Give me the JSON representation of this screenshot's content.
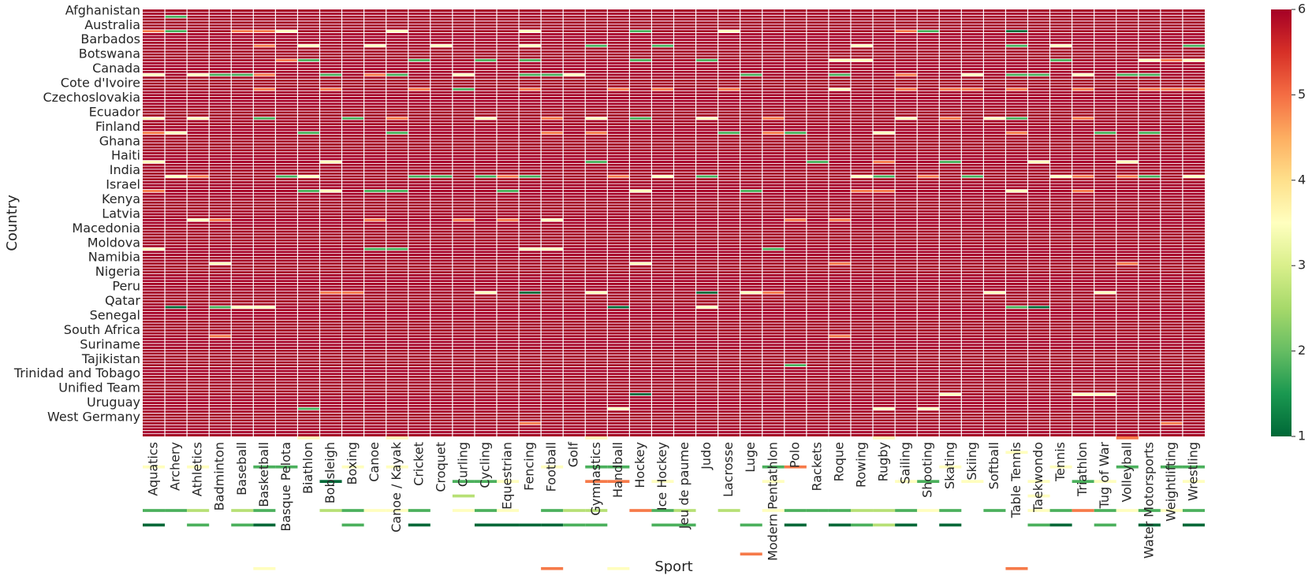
{
  "chart_data": {
    "type": "heatmap",
    "xlabel": "Sport",
    "ylabel": "Country",
    "x_labels": [
      "Aquatics",
      "Archery",
      "Athletics",
      "Badminton",
      "Baseball",
      "Basketball",
      "Basque Pelota",
      "Biathlon",
      "Bobsleigh",
      "Boxing",
      "Canoe",
      "Canoe / Kayak",
      "Cricket",
      "Croquet",
      "Curling",
      "Cycling",
      "Equestrian",
      "Fencing",
      "Football",
      "Golf",
      "Gymnastics",
      "Handball",
      "Hockey",
      "Ice Hockey",
      "Jeu de paume",
      "Judo",
      "Lacrosse",
      "Luge",
      "Modern Pentathlon",
      "Polo",
      "Rackets",
      "Roque",
      "Rowing",
      "Rugby",
      "Sailing",
      "Shooting",
      "Skating",
      "Skiing",
      "Softball",
      "Table Tennis",
      "Taekwondo",
      "Tennis",
      "Triathlon",
      "Tug of War",
      "Volleyball",
      "Water Motorsports",
      "Weightlifting",
      "Wrestling"
    ],
    "y_tick_labels": [
      "Afghanistan",
      "Australia",
      "Barbados",
      "Botswana",
      "Canada",
      "Cote d'Ivoire",
      "Czechoslovakia",
      "Ecuador",
      "Finland",
      "Ghana",
      "Haiti",
      "India",
      "Israel",
      "Kenya",
      "Latvia",
      "Macedonia",
      "Moldova",
      "Namibia",
      "Nigeria",
      "Peru",
      "Qatar",
      "Senegal",
      "South Africa",
      "Suriname",
      "Tajikistan",
      "Trinidad and Tobago",
      "Unified Team",
      "Uruguay",
      "West Germany"
    ],
    "rows_per_tick": 5,
    "row_count": 147,
    "default_value": 6,
    "cells": [
      [
        1,
        0,
        2
      ],
      [
        0,
        1,
        5
      ],
      [
        1,
        1,
        2
      ],
      [
        6,
        1,
        4
      ],
      [
        5,
        1,
        5
      ],
      [
        4,
        1,
        5
      ],
      [
        11,
        1,
        4
      ],
      [
        17,
        1,
        4
      ],
      [
        22,
        1,
        2
      ],
      [
        26,
        1,
        4
      ],
      [
        34,
        1,
        5
      ],
      [
        35,
        1,
        2
      ],
      [
        39,
        1,
        1
      ],
      [
        5,
        2,
        5
      ],
      [
        7,
        2,
        4
      ],
      [
        10,
        2,
        4
      ],
      [
        13,
        2,
        4
      ],
      [
        17,
        2,
        4
      ],
      [
        20,
        2,
        2
      ],
      [
        23,
        2,
        2
      ],
      [
        32,
        2,
        4
      ],
      [
        39,
        2,
        2
      ],
      [
        41,
        2,
        4
      ],
      [
        47,
        2,
        2
      ],
      [
        6,
        3,
        5
      ],
      [
        7,
        3,
        2
      ],
      [
        12,
        3,
        2
      ],
      [
        15,
        3,
        2
      ],
      [
        17,
        3,
        2
      ],
      [
        22,
        3,
        2
      ],
      [
        25,
        3,
        2
      ],
      [
        31,
        3,
        4
      ],
      [
        32,
        3,
        4
      ],
      [
        41,
        3,
        2
      ],
      [
        45,
        3,
        4
      ],
      [
        46,
        3,
        5
      ],
      [
        47,
        3,
        4
      ],
      [
        0,
        4,
        4
      ],
      [
        2,
        4,
        4
      ],
      [
        3,
        4,
        2
      ],
      [
        4,
        4,
        2
      ],
      [
        5,
        4,
        5
      ],
      [
        8,
        4,
        2
      ],
      [
        10,
        4,
        5
      ],
      [
        11,
        4,
        2
      ],
      [
        14,
        4,
        4
      ],
      [
        17,
        4,
        2
      ],
      [
        18,
        4,
        2
      ],
      [
        19,
        4,
        4
      ],
      [
        27,
        4,
        2
      ],
      [
        31,
        4,
        2
      ],
      [
        34,
        4,
        5
      ],
      [
        37,
        4,
        4
      ],
      [
        39,
        4,
        2
      ],
      [
        40,
        4,
        2
      ],
      [
        42,
        4,
        4
      ],
      [
        44,
        4,
        2
      ],
      [
        45,
        4,
        2
      ],
      [
        5,
        5,
        5
      ],
      [
        8,
        5,
        5
      ],
      [
        12,
        5,
        5
      ],
      [
        14,
        5,
        2
      ],
      [
        17,
        5,
        5
      ],
      [
        21,
        5,
        5
      ],
      [
        23,
        5,
        5
      ],
      [
        26,
        5,
        5
      ],
      [
        31,
        5,
        4
      ],
      [
        34,
        5,
        5
      ],
      [
        36,
        5,
        5
      ],
      [
        37,
        5,
        5
      ],
      [
        39,
        5,
        5
      ],
      [
        42,
        5,
        5
      ],
      [
        45,
        5,
        5
      ],
      [
        46,
        5,
        5
      ],
      [
        47,
        5,
        5
      ],
      [
        0,
        7,
        4
      ],
      [
        2,
        7,
        4
      ],
      [
        5,
        7,
        2
      ],
      [
        9,
        7,
        2
      ],
      [
        11,
        7,
        5
      ],
      [
        15,
        7,
        4
      ],
      [
        18,
        7,
        5
      ],
      [
        20,
        7,
        4
      ],
      [
        22,
        7,
        2
      ],
      [
        25,
        7,
        4
      ],
      [
        28,
        7,
        5
      ],
      [
        34,
        7,
        4
      ],
      [
        36,
        7,
        5
      ],
      [
        38,
        7,
        4
      ],
      [
        39,
        7,
        2
      ],
      [
        42,
        7,
        5
      ],
      [
        0,
        8,
        5
      ],
      [
        1,
        8,
        4
      ],
      [
        7,
        8,
        2
      ],
      [
        11,
        8,
        2
      ],
      [
        18,
        8,
        5
      ],
      [
        20,
        8,
        5
      ],
      [
        26,
        8,
        2
      ],
      [
        28,
        8,
        5
      ],
      [
        29,
        8,
        2
      ],
      [
        33,
        8,
        4
      ],
      [
        39,
        8,
        5
      ],
      [
        43,
        8,
        2
      ],
      [
        45,
        8,
        2
      ],
      [
        0,
        10,
        4
      ],
      [
        8,
        10,
        4
      ],
      [
        20,
        10,
        2
      ],
      [
        30,
        10,
        2
      ],
      [
        33,
        10,
        5
      ],
      [
        36,
        10,
        2
      ],
      [
        40,
        10,
        4
      ],
      [
        44,
        10,
        4
      ],
      [
        1,
        11,
        4
      ],
      [
        2,
        11,
        5
      ],
      [
        6,
        11,
        2
      ],
      [
        7,
        11,
        4
      ],
      [
        12,
        11,
        2
      ],
      [
        13,
        11,
        2
      ],
      [
        15,
        11,
        2
      ],
      [
        16,
        11,
        5
      ],
      [
        17,
        11,
        2
      ],
      [
        21,
        11,
        5
      ],
      [
        23,
        11,
        4
      ],
      [
        25,
        11,
        2
      ],
      [
        32,
        11,
        4
      ],
      [
        33,
        11,
        2
      ],
      [
        35,
        11,
        5
      ],
      [
        37,
        11,
        2
      ],
      [
        41,
        11,
        4
      ],
      [
        42,
        11,
        5
      ],
      [
        44,
        11,
        5
      ],
      [
        45,
        11,
        2
      ],
      [
        47,
        11,
        4
      ],
      [
        0,
        12,
        5
      ],
      [
        7,
        12,
        2
      ],
      [
        8,
        12,
        4
      ],
      [
        10,
        12,
        2
      ],
      [
        11,
        12,
        2
      ],
      [
        16,
        12,
        2
      ],
      [
        22,
        12,
        4
      ],
      [
        27,
        12,
        2
      ],
      [
        32,
        12,
        5
      ],
      [
        33,
        12,
        5
      ],
      [
        39,
        12,
        4
      ],
      [
        42,
        12,
        5
      ],
      [
        2,
        14,
        4
      ],
      [
        3,
        14,
        5
      ],
      [
        10,
        14,
        5
      ],
      [
        14,
        14,
        5
      ],
      [
        16,
        14,
        5
      ],
      [
        18,
        14,
        4
      ],
      [
        29,
        14,
        5
      ],
      [
        31,
        14,
        5
      ],
      [
        0,
        16,
        4
      ],
      [
        10,
        16,
        2
      ],
      [
        11,
        16,
        2
      ],
      [
        17,
        16,
        4
      ],
      [
        18,
        16,
        4
      ],
      [
        28,
        16,
        2
      ],
      [
        3,
        17,
        4
      ],
      [
        22,
        17,
        4
      ],
      [
        31,
        17,
        5
      ],
      [
        44,
        17,
        5
      ],
      [
        8,
        19,
        5
      ],
      [
        9,
        19,
        5
      ],
      [
        15,
        19,
        4
      ],
      [
        17,
        19,
        1
      ],
      [
        20,
        19,
        4
      ],
      [
        25,
        19,
        1
      ],
      [
        27,
        19,
        4
      ],
      [
        28,
        19,
        5
      ],
      [
        38,
        19,
        4
      ],
      [
        43,
        19,
        4
      ],
      [
        1,
        20,
        1
      ],
      [
        3,
        20,
        2
      ],
      [
        4,
        20,
        4
      ],
      [
        5,
        20,
        4
      ],
      [
        21,
        20,
        1
      ],
      [
        25,
        20,
        4
      ],
      [
        39,
        20,
        2
      ],
      [
        40,
        20,
        1
      ],
      [
        3,
        22,
        5
      ],
      [
        31,
        22,
        5
      ],
      [
        29,
        24,
        2
      ],
      [
        22,
        26,
        1
      ],
      [
        36,
        26,
        4
      ],
      [
        42,
        26,
        4
      ],
      [
        43,
        26,
        4
      ],
      [
        7,
        27,
        2
      ],
      [
        21,
        27,
        4
      ],
      [
        33,
        27,
        4
      ],
      [
        35,
        27,
        4
      ],
      [
        17,
        28,
        5
      ],
      [
        46,
        28,
        5
      ],
      [
        7,
        29,
        4
      ],
      [
        11,
        29,
        4
      ],
      [
        20,
        29,
        4
      ],
      [
        33,
        29,
        4
      ],
      [
        44,
        29,
        5
      ],
      [
        39,
        30,
        4
      ],
      [
        0,
        31,
        4
      ],
      [
        2,
        31,
        4
      ],
      [
        5,
        31,
        2
      ],
      [
        6,
        31,
        2
      ],
      [
        9,
        31,
        4
      ],
      [
        11,
        31,
        4
      ],
      [
        18,
        31,
        4
      ],
      [
        20,
        31,
        2
      ],
      [
        21,
        31,
        2
      ],
      [
        28,
        31,
        2
      ],
      [
        29,
        31,
        5
      ],
      [
        36,
        31,
        4
      ],
      [
        41,
        31,
        4
      ],
      [
        44,
        31,
        2
      ],
      [
        46,
        31,
        2
      ],
      [
        47,
        31,
        2
      ],
      [
        8,
        32,
        1
      ],
      [
        14,
        32,
        2
      ],
      [
        15,
        32,
        2
      ],
      [
        16,
        32,
        4
      ],
      [
        20,
        32,
        5
      ],
      [
        21,
        32,
        5
      ],
      [
        23,
        32,
        4
      ],
      [
        28,
        32,
        4
      ],
      [
        34,
        32,
        4
      ],
      [
        35,
        32,
        2
      ],
      [
        37,
        32,
        4
      ],
      [
        40,
        32,
        4
      ],
      [
        42,
        32,
        2
      ],
      [
        43,
        32,
        4
      ],
      [
        47,
        32,
        4
      ],
      [
        14,
        33,
        3
      ],
      [
        40,
        33,
        4
      ],
      [
        0,
        34,
        2
      ],
      [
        1,
        34,
        2
      ],
      [
        2,
        34,
        3
      ],
      [
        4,
        34,
        3
      ],
      [
        5,
        34,
        2
      ],
      [
        8,
        34,
        3
      ],
      [
        9,
        34,
        2
      ],
      [
        10,
        34,
        4
      ],
      [
        11,
        34,
        4
      ],
      [
        12,
        34,
        2
      ],
      [
        14,
        34,
        4
      ],
      [
        15,
        34,
        2
      ],
      [
        16,
        34,
        4
      ],
      [
        18,
        34,
        2
      ],
      [
        19,
        34,
        3
      ],
      [
        20,
        34,
        3
      ],
      [
        22,
        34,
        5
      ],
      [
        23,
        34,
        2
      ],
      [
        24,
        34,
        3
      ],
      [
        26,
        34,
        3
      ],
      [
        28,
        34,
        4
      ],
      [
        29,
        34,
        2
      ],
      [
        30,
        34,
        2
      ],
      [
        31,
        34,
        2
      ],
      [
        32,
        34,
        3
      ],
      [
        33,
        34,
        3
      ],
      [
        34,
        34,
        2
      ],
      [
        35,
        34,
        4
      ],
      [
        36,
        34,
        2
      ],
      [
        38,
        34,
        2
      ],
      [
        40,
        34,
        4
      ],
      [
        41,
        34,
        2
      ],
      [
        42,
        34,
        5
      ],
      [
        43,
        34,
        2
      ],
      [
        44,
        34,
        4
      ],
      [
        45,
        34,
        2
      ],
      [
        46,
        34,
        4
      ],
      [
        47,
        34,
        2
      ],
      [
        0,
        35,
        1
      ],
      [
        2,
        35,
        2
      ],
      [
        4,
        35,
        2
      ],
      [
        5,
        35,
        1
      ],
      [
        9,
        35,
        2
      ],
      [
        12,
        35,
        1
      ],
      [
        15,
        35,
        1
      ],
      [
        16,
        35,
        1
      ],
      [
        17,
        35,
        1
      ],
      [
        18,
        35,
        1
      ],
      [
        19,
        35,
        2
      ],
      [
        20,
        35,
        2
      ],
      [
        23,
        35,
        2
      ],
      [
        24,
        35,
        2
      ],
      [
        27,
        35,
        2
      ],
      [
        29,
        35,
        1
      ],
      [
        31,
        35,
        1
      ],
      [
        32,
        35,
        2
      ],
      [
        33,
        35,
        3
      ],
      [
        34,
        35,
        1
      ],
      [
        36,
        35,
        1
      ],
      [
        40,
        35,
        2
      ],
      [
        41,
        35,
        1
      ],
      [
        43,
        35,
        2
      ],
      [
        45,
        35,
        1
      ],
      [
        47,
        35,
        1
      ],
      [
        27,
        37,
        5
      ],
      [
        5,
        38,
        4
      ],
      [
        18,
        38,
        5
      ],
      [
        21,
        38,
        4
      ],
      [
        39,
        38,
        5
      ]
    ],
    "colorbar": {
      "vmin": 1,
      "vmax": 6,
      "ticks": [
        1,
        2,
        3,
        4,
        5,
        6
      ],
      "colormap": "RdYlGn_r"
    }
  }
}
